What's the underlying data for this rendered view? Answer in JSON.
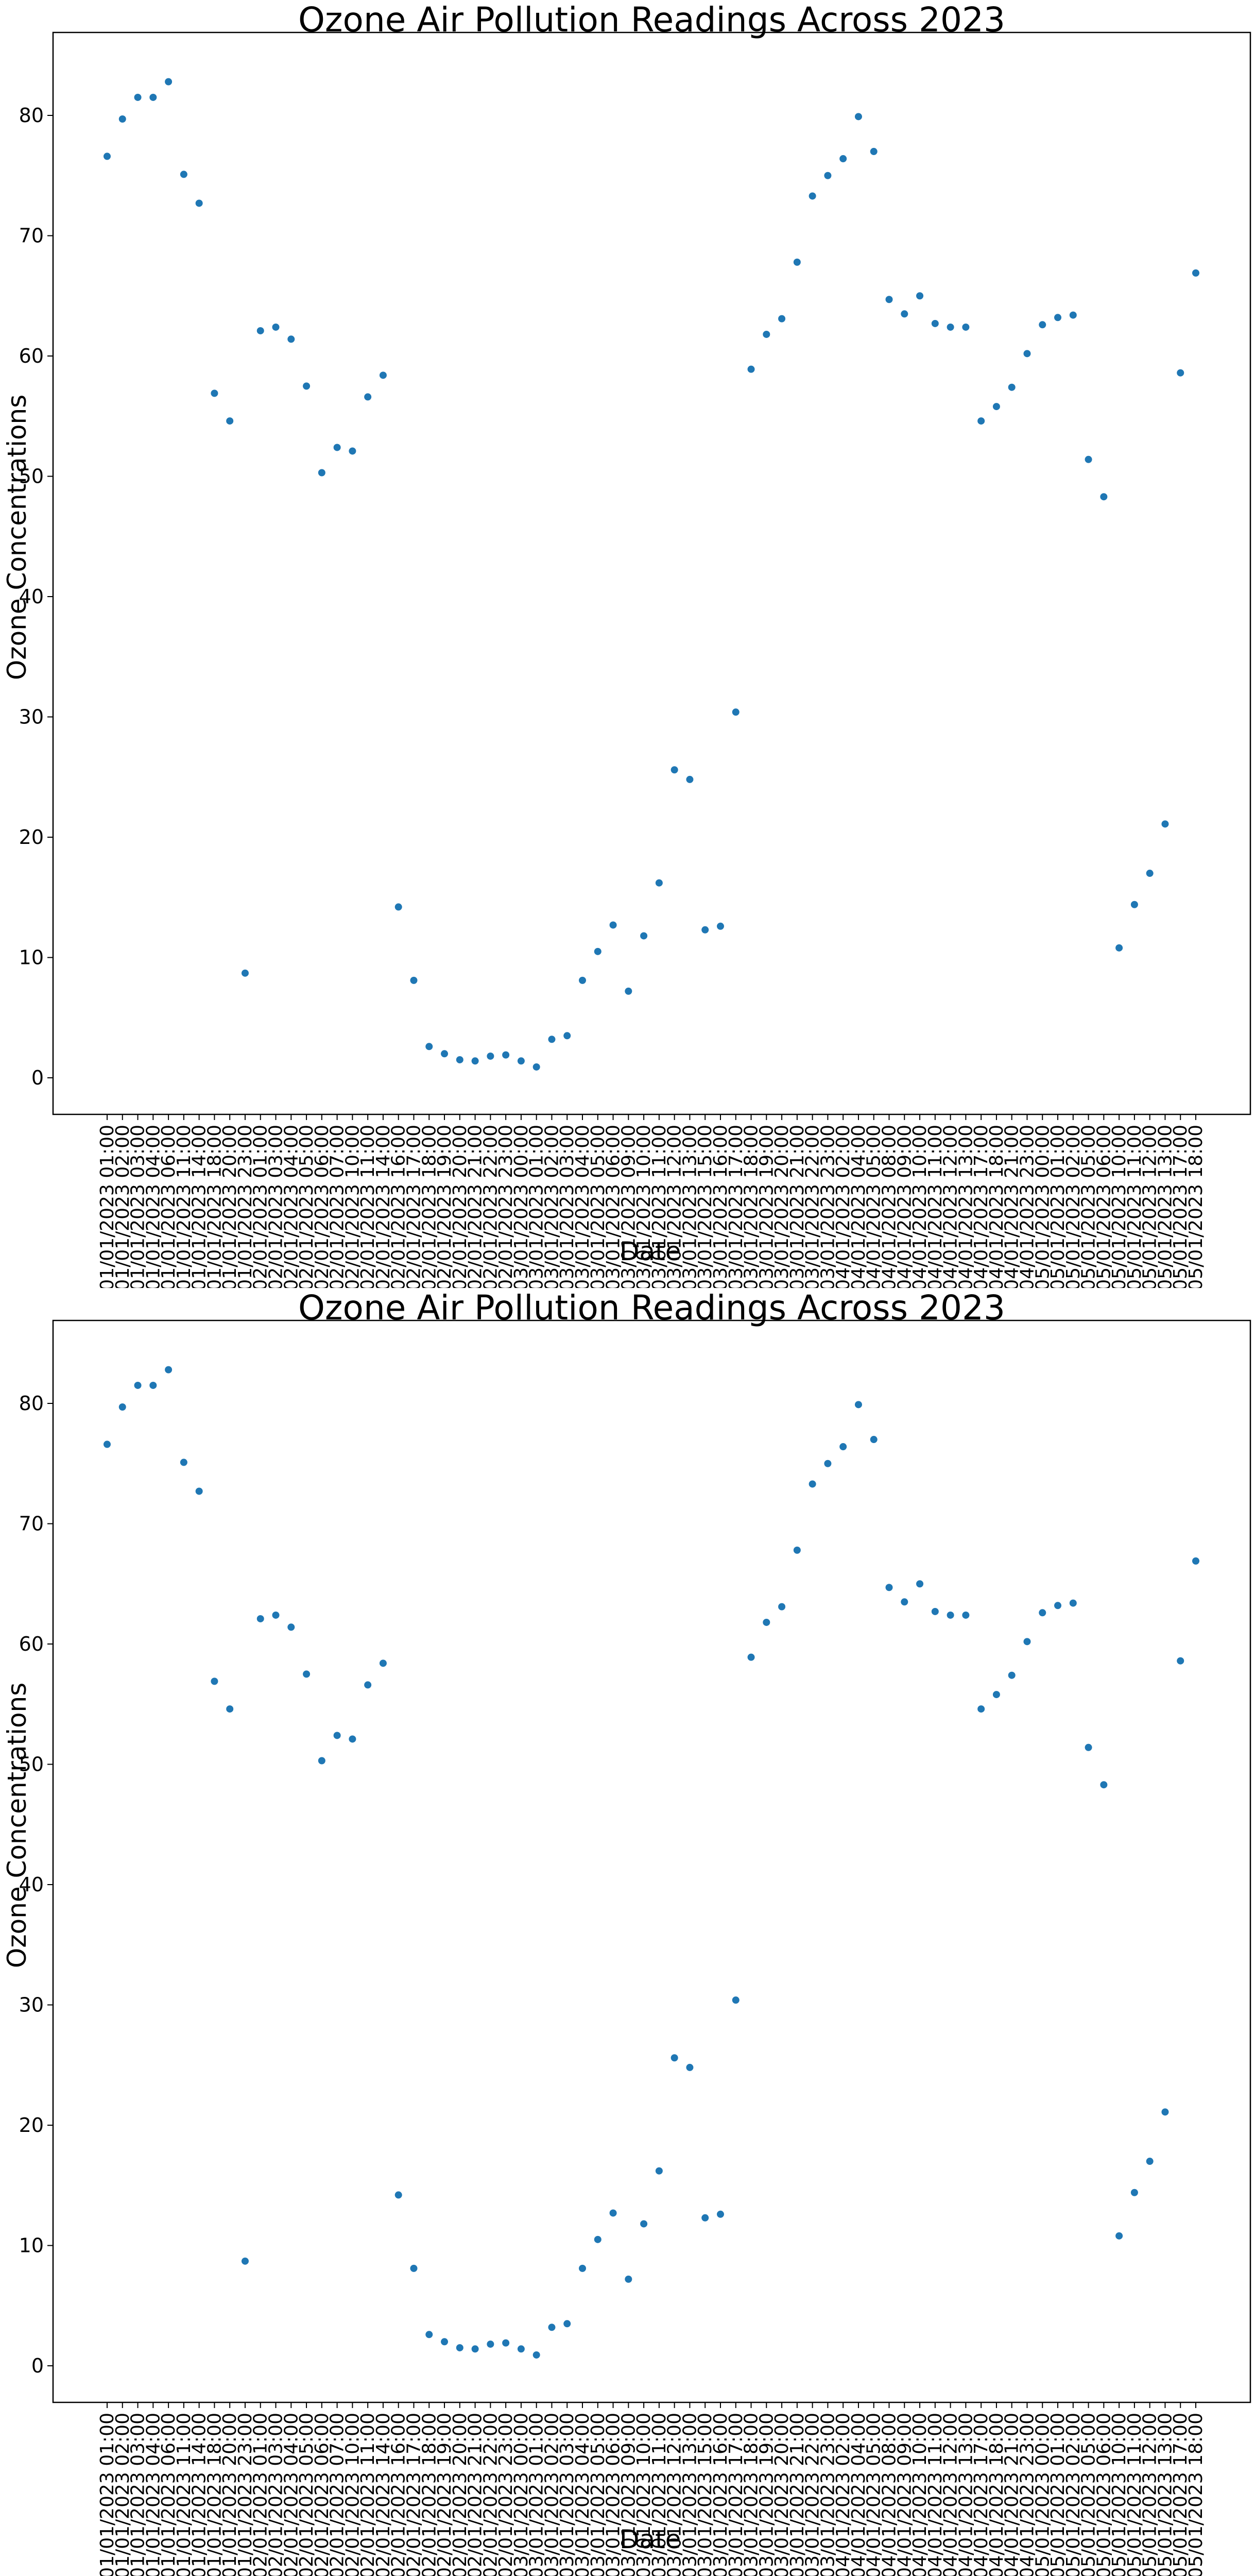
{
  "charts": [
    {
      "title": "Ozone Air Pollution Readings Across 2023",
      "xlabel": "Date",
      "ylabel": "Ozone Concentrations"
    },
    {
      "title": "Ozone Air Pollution Readings Across 2023",
      "xlabel": "Date",
      "ylabel": "Ozone Concentrations"
    }
  ],
  "style": {
    "point_color": "#1f77b4",
    "axis_color": "#000000"
  },
  "chart_data": [
    {
      "type": "scatter",
      "title": "Ozone Air Pollution Readings Across 2023",
      "xlabel": "Date",
      "ylabel": "Ozone Concentrations",
      "ylim": [
        -3.2,
        86.5
      ],
      "yticks": [
        0,
        10,
        20,
        30,
        40,
        50,
        60,
        70,
        80
      ],
      "grid": false,
      "legend": null,
      "x": [
        "01/01/2023 01:00",
        "01/01/2023 02:00",
        "01/01/2023 03:00",
        "01/01/2023 04:00",
        "01/01/2023 06:00",
        "01/01/2023 11:00",
        "01/01/2023 14:00",
        "01/01/2023 18:00",
        "01/01/2023 20:00",
        "01/01/2023 23:00",
        "02/01/2023 01:00",
        "02/01/2023 03:00",
        "02/01/2023 04:00",
        "02/01/2023 05:00",
        "02/01/2023 06:00",
        "02/01/2023 07:00",
        "02/01/2023 10:00",
        "02/01/2023 11:00",
        "02/01/2023 14:00",
        "02/01/2023 16:00",
        "02/01/2023 17:00",
        "02/01/2023 18:00",
        "02/01/2023 19:00",
        "02/01/2023 20:00",
        "02/01/2023 21:00",
        "02/01/2023 22:00",
        "02/01/2023 23:00",
        "03/01/2023 00:00",
        "03/01/2023 01:00",
        "03/01/2023 02:00",
        "03/01/2023 03:00",
        "03/01/2023 04:00",
        "03/01/2023 05:00",
        "03/01/2023 06:00",
        "03/01/2023 09:00",
        "03/01/2023 10:00",
        "03/01/2023 11:00",
        "03/01/2023 12:00",
        "03/01/2023 13:00",
        "03/01/2023 15:00",
        "03/01/2023 16:00",
        "03/01/2023 17:00",
        "03/01/2023 18:00",
        "03/01/2023 19:00",
        "03/01/2023 20:00",
        "03/01/2023 21:00",
        "03/01/2023 22:00",
        "03/01/2023 23:00",
        "04/01/2023 02:00",
        "04/01/2023 04:00",
        "04/01/2023 05:00",
        "04/01/2023 08:00",
        "04/01/2023 09:00",
        "04/01/2023 10:00",
        "04/01/2023 11:00",
        "04/01/2023 12:00",
        "04/01/2023 13:00",
        "04/01/2023 17:00",
        "04/01/2023 18:00",
        "04/01/2023 21:00",
        "04/01/2023 23:00",
        "05/01/2023 00:00",
        "05/01/2023 01:00",
        "05/01/2023 02:00",
        "05/01/2023 05:00",
        "05/01/2023 06:00",
        "05/01/2023 10:00",
        "05/01/2023 11:00",
        "05/01/2023 12:00",
        "05/01/2023 13:00",
        "05/01/2023 17:00",
        "05/01/2023 18:00"
      ],
      "y": [
        76.6,
        79.7,
        81.5,
        81.5,
        82.8,
        75.1,
        72.7,
        56.9,
        54.6,
        8.7,
        62.1,
        62.4,
        61.4,
        57.5,
        50.3,
        52.4,
        52.1,
        56.6,
        58.4,
        14.2,
        8.1,
        2.6,
        2.0,
        1.5,
        1.4,
        1.8,
        1.9,
        1.4,
        0.9,
        3.2,
        3.5,
        8.1,
        10.5,
        12.7,
        7.2,
        11.8,
        16.2,
        25.6,
        24.8,
        12.3,
        12.6,
        30.4,
        58.9,
        61.8,
        63.1,
        67.8,
        73.3,
        75.0,
        76.4,
        79.9,
        77.0,
        64.7,
        63.5,
        65.0,
        62.7,
        62.4,
        62.4,
        54.6,
        55.8,
        57.4,
        60.2,
        62.6,
        63.2,
        63.4,
        51.4,
        48.3,
        10.8,
        14.4,
        17.0,
        21.1,
        58.6,
        66.9
      ]
    },
    {
      "type": "scatter",
      "title": "Ozone Air Pollution Readings Across 2023",
      "xlabel": "Date",
      "ylabel": "Ozone Concentrations",
      "ylim": [
        -3.2,
        86.5
      ],
      "yticks": [
        0,
        10,
        20,
        30,
        40,
        50,
        60,
        70,
        80
      ],
      "grid": false,
      "legend": null,
      "x": "same as chart_data[0].x",
      "y": "same as chart_data[0].y"
    }
  ]
}
